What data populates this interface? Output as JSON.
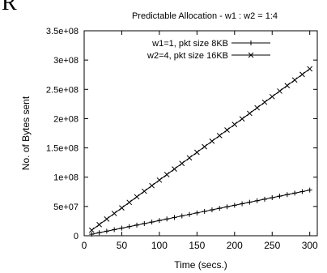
{
  "corner_glyph": "R",
  "chart_data": {
    "type": "line",
    "title": "Predictable Allocation - w1 : w2 = 1:4",
    "xlabel": "Time (secs.)",
    "ylabel": "No. of Bytes sent",
    "xlim": [
      0,
      310
    ],
    "ylim": [
      0,
      350000000
    ],
    "x_ticks": [
      0,
      50,
      100,
      150,
      200,
      250,
      300
    ],
    "x_tick_labels": [
      "0",
      "50",
      "100",
      "150",
      "200",
      "250",
      "300"
    ],
    "y_ticks": [
      0,
      50000000,
      100000000,
      150000000,
      200000000,
      250000000,
      300000000,
      350000000
    ],
    "y_tick_labels": [
      "0",
      "5e+07",
      "1e+08",
      "1.5e+08",
      "2e+08",
      "2.5e+08",
      "3e+08",
      "3.5e+08"
    ],
    "legend_position": "top-right",
    "grid": false,
    "series": [
      {
        "name": "w1=1, pkt size 8KB",
        "marker": "plus",
        "color": "#000000",
        "x": [
          10,
          20,
          30,
          40,
          50,
          60,
          70,
          80,
          90,
          100,
          110,
          120,
          130,
          140,
          150,
          160,
          170,
          180,
          190,
          200,
          210,
          220,
          230,
          240,
          250,
          260,
          270,
          280,
          290,
          300
        ],
        "values": [
          2600000,
          5200000,
          7800000,
          10400000,
          13000000,
          15600000,
          18200000,
          20800000,
          23400000,
          26000000,
          28600000,
          31200000,
          33800000,
          36400000,
          39000000,
          41600000,
          44200000,
          46800000,
          49400000,
          52000000,
          54600000,
          57200000,
          59800000,
          62400000,
          65000000,
          67600000,
          70200000,
          72800000,
          75400000,
          78000000
        ]
      },
      {
        "name": "w2=4, pkt size 16KB",
        "marker": "cross",
        "color": "#000000",
        "x": [
          10,
          20,
          30,
          40,
          50,
          60,
          70,
          80,
          90,
          100,
          110,
          120,
          130,
          140,
          150,
          160,
          170,
          180,
          190,
          200,
          210,
          220,
          230,
          240,
          250,
          260,
          270,
          280,
          290,
          300
        ],
        "values": [
          9500000,
          19000000,
          28500000,
          38000000,
          47500000,
          57000000,
          66500000,
          76000000,
          85500000,
          95000000,
          104500000,
          114000000,
          123500000,
          133000000,
          142500000,
          152000000,
          161500000,
          171000000,
          180500000,
          190000000,
          199500000,
          209000000,
          218500000,
          228000000,
          237500000,
          247000000,
          256500000,
          266000000,
          275500000,
          285000000
        ]
      }
    ]
  }
}
